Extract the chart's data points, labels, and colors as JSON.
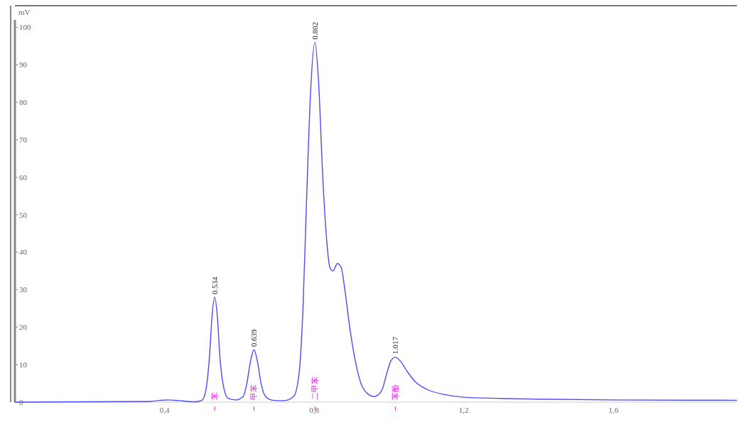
{
  "chart_data": {
    "type": "line",
    "ylabel": "mV",
    "x": [
      0,
      0.36,
      0.39,
      0.41,
      0.44,
      0.48,
      0.5,
      0.51,
      0.52,
      0.527,
      0.534,
      0.541,
      0.548,
      0.558,
      0.57,
      0.59,
      0.61,
      0.62,
      0.63,
      0.639,
      0.648,
      0.658,
      0.67,
      0.69,
      0.72,
      0.745,
      0.76,
      0.77,
      0.78,
      0.79,
      0.802,
      0.812,
      0.822,
      0.832,
      0.842,
      0.85,
      0.862,
      0.872,
      0.882,
      0.895,
      0.91,
      0.925,
      0.94,
      0.96,
      0.98,
      0.995,
      1.005,
      1.017,
      1.03,
      1.05,
      1.07,
      1.1,
      1.15,
      1.2,
      1.3,
      1.4,
      1.6,
      1.93
    ],
    "series": [
      {
        "color": "#4b4bf5",
        "values": [
          0,
          0.2,
          0.5,
          0.6,
          0.4,
          0.1,
          0.5,
          3,
          12,
          23,
          28,
          23,
          12,
          4,
          1,
          0.6,
          1.5,
          5,
          11,
          14,
          11,
          5,
          1.5,
          0.5,
          0.4,
          1.5,
          8,
          25,
          55,
          82,
          96,
          85,
          62,
          45,
          36,
          35,
          37,
          36,
          30,
          20,
          11,
          5,
          2.5,
          1.5,
          3,
          8,
          11,
          12,
          11,
          8,
          5.5,
          3.5,
          2,
          1.3,
          1,
          0.8,
          0.6,
          0.5
        ]
      }
    ],
    "xlim": [
      0,
      1.93
    ],
    "ylim": [
      0,
      102
    ],
    "xticks": [
      {
        "value": 0.4,
        "label": "0,4"
      },
      {
        "value": 0.8,
        "label": "0,8"
      },
      {
        "value": 1.2,
        "label": "1,2"
      },
      {
        "value": 1.6,
        "label": "1,6"
      }
    ],
    "yticks": [
      0,
      10,
      20,
      30,
      40,
      50,
      60,
      70,
      80,
      90,
      100
    ],
    "grid": false,
    "marker": "none",
    "line_style": "solid",
    "annotations": [
      {
        "text": "0.534",
        "x": 0.534,
        "y": 28
      },
      {
        "text": "0.639",
        "x": 0.639,
        "y": 14
      },
      {
        "text": "0.802",
        "x": 0.802,
        "y": 96
      },
      {
        "text": "1.017",
        "x": 1.017,
        "y": 12
      },
      {
        "text": "苯",
        "x": 0.534
      },
      {
        "text": "甲苯",
        "x": 0.639
      },
      {
        "text": "二甲苯",
        "x": 0.802
      },
      {
        "text": "苯酚",
        "x": 1.017
      }
    ]
  }
}
